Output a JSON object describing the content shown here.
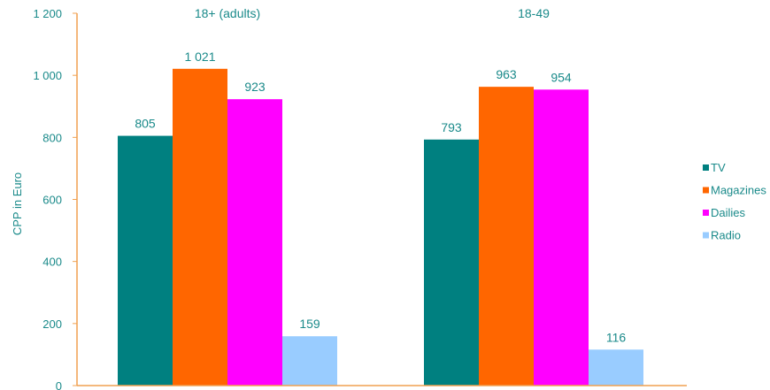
{
  "chart_data": {
    "type": "bar",
    "categories": [
      "18+ (adults)",
      "18-49"
    ],
    "series": [
      {
        "name": "TV",
        "values": [
          805,
          793
        ],
        "color": "#008080",
        "labels": [
          "805",
          "793"
        ]
      },
      {
        "name": "Magazines",
        "values": [
          1021,
          963
        ],
        "color": "#ff6600",
        "labels": [
          "1 021",
          "963"
        ]
      },
      {
        "name": "Dailies",
        "values": [
          923,
          954
        ],
        "color": "#ff00ff",
        "labels": [
          "923",
          "954"
        ]
      },
      {
        "name": "Radio",
        "values": [
          159,
          116
        ],
        "color": "#99ccff",
        "labels": [
          "159",
          "116"
        ]
      }
    ],
    "ylabel": "CPP in Euro",
    "xlabel": "",
    "ylim": [
      0,
      1200
    ],
    "yticks": [
      0,
      200,
      400,
      600,
      800,
      1000,
      1200
    ],
    "ytick_labels": [
      "0",
      "200",
      "400",
      "600",
      "800",
      "1 000",
      "1 200"
    ],
    "grid": false,
    "legend_position": "right",
    "axis_color": "#f0a050",
    "text_color": "#1a8a8a"
  }
}
